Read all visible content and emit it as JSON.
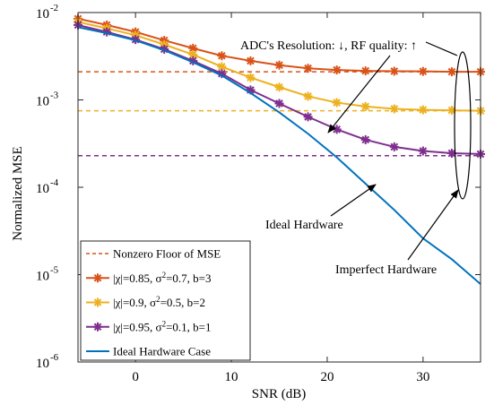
{
  "chart_data": {
    "type": "line",
    "xlabel": "SNR (dB)",
    "ylabel": "Normalized MSE",
    "xlim": [
      -6,
      36
    ],
    "ylim": [
      1e-06,
      0.01
    ],
    "yscale": "log",
    "grid": false,
    "legend_position": "bottom-left",
    "x_ticks": [
      0,
      10,
      20,
      30
    ],
    "x_tick_labels": [
      "0",
      "10",
      "20",
      "30"
    ],
    "y_ticks": [
      1e-06,
      1e-05,
      0.0001,
      0.001,
      0.01
    ],
    "y_tick_labels": [
      {
        "base": "10",
        "exp": "-6"
      },
      {
        "base": "10",
        "exp": "-5"
      },
      {
        "base": "10",
        "exp": "-4"
      },
      {
        "base": "10",
        "exp": "-3"
      },
      {
        "base": "10",
        "exp": "-2"
      }
    ],
    "x": [
      -6,
      -3,
      0,
      3,
      6,
      9,
      12,
      15,
      18,
      21,
      24,
      27,
      30,
      33,
      36
    ],
    "floors": [
      {
        "name": "Nonzero Floor of MSE",
        "value": 0.0021,
        "color": "#d95319"
      },
      {
        "value": 0.00075,
        "color": "#edb120"
      },
      {
        "value": 0.00023,
        "color": "#7e2f8e"
      }
    ],
    "series": [
      {
        "name": "|χ|=0.85, σ²=0.7, b=3",
        "label_parts": [
          "|χ|=0.85, σ",
          "2",
          "=0.7, b=3"
        ],
        "color": "#d95319",
        "marker": "asterisk",
        "values": [
          0.0085,
          0.0072,
          0.006,
          0.0048,
          0.0039,
          0.0032,
          0.0028,
          0.0025,
          0.0023,
          0.0022,
          0.00215,
          0.00213,
          0.00212,
          0.0021,
          0.0021
        ]
      },
      {
        "name": "|χ|=0.9, σ²=0.5, b=2",
        "label_parts": [
          "|χ|=0.9,   σ",
          "2",
          "=0.5, b=2"
        ],
        "color": "#edb120",
        "marker": "asterisk",
        "values": [
          0.0078,
          0.0066,
          0.0055,
          0.0043,
          0.0033,
          0.0024,
          0.0018,
          0.0014,
          0.0011,
          0.00093,
          0.00084,
          0.00079,
          0.00077,
          0.00076,
          0.00075
        ]
      },
      {
        "name": "|χ|=0.95, σ²=0.1, b=1",
        "label_parts": [
          "|χ|=0.95, σ",
          "2",
          "=0.1, b=1"
        ],
        "color": "#7e2f8e",
        "marker": "asterisk",
        "values": [
          0.0072,
          0.006,
          0.0049,
          0.0038,
          0.0028,
          0.002,
          0.0013,
          0.00091,
          0.00064,
          0.00046,
          0.00035,
          0.00029,
          0.00026,
          0.000245,
          0.00024
        ]
      },
      {
        "name": "Ideal Hardware Case",
        "color": "#0072bd",
        "marker": "none",
        "values": [
          0.0068,
          0.0058,
          0.0048,
          0.0037,
          0.0027,
          0.0019,
          0.0012,
          0.00072,
          0.00041,
          0.00022,
          0.00011,
          5.5e-05,
          2.6e-05,
          1.5e-05,
          7.8e-06
        ]
      }
    ],
    "annotations": [
      {
        "text": "ADC's Resolution: ↓, RF quality: ↑"
      },
      {
        "text": "Ideal Hardware"
      },
      {
        "text": "Imperfect Hardware"
      }
    ]
  }
}
